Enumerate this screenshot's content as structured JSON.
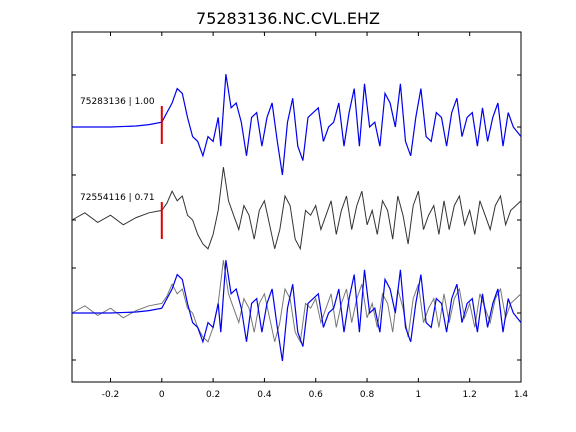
{
  "chart_data": {
    "type": "line",
    "title": "75283136.NC.CVL.EHZ",
    "xlabel": "",
    "ylabel": "",
    "xlim": [
      -0.35,
      1.4
    ],
    "xticks": [
      -0.2,
      0,
      0.2,
      0.4,
      0.6,
      0.8,
      1,
      1.2,
      1.4
    ],
    "xtick_labels": [
      "-0.2",
      "0",
      "0.2",
      "0.4",
      "0.6",
      "0.8",
      "1",
      "1.2",
      "1.4"
    ],
    "grid": false,
    "pick_time": 0,
    "colors": {
      "master": "#0000ee",
      "other": "#333333",
      "pick": "#e00000"
    },
    "traces": [
      {
        "label": "75283136 | 1.00",
        "style": "master"
      },
      {
        "label": "72554116 | 0.71",
        "style": "other"
      }
    ],
    "overlay": {
      "style": "overlay"
    },
    "series": [
      {
        "style": "master",
        "x": [
          -0.35,
          -0.3,
          -0.2,
          -0.1,
          -0.05,
          0,
          0.02,
          0.04,
          0.06,
          0.08,
          0.1,
          0.12,
          0.14,
          0.16,
          0.18,
          0.2,
          0.22,
          0.23,
          0.25,
          0.27,
          0.29,
          0.31,
          0.33,
          0.35,
          0.37,
          0.39,
          0.41,
          0.43,
          0.45,
          0.47,
          0.49,
          0.51,
          0.53,
          0.55,
          0.57,
          0.59,
          0.61,
          0.63,
          0.65,
          0.67,
          0.69,
          0.71,
          0.73,
          0.75,
          0.77,
          0.79,
          0.81,
          0.83,
          0.85,
          0.87,
          0.89,
          0.91,
          0.93,
          0.95,
          0.97,
          0.99,
          1.01,
          1.03,
          1.05,
          1.07,
          1.09,
          1.11,
          1.13,
          1.15,
          1.17,
          1.19,
          1.21,
          1.23,
          1.25,
          1.27,
          1.29,
          1.31,
          1.33,
          1.35,
          1.37,
          1.4
        ],
        "y": [
          0,
          0,
          0,
          0.02,
          0.05,
          0.1,
          0.3,
          0.5,
          0.8,
          0.7,
          0.2,
          -0.2,
          -0.3,
          -0.6,
          -0.2,
          -0.3,
          0.2,
          -0.4,
          1.1,
          0.4,
          0.5,
          0.1,
          -0.6,
          0.2,
          0.3,
          -0.4,
          0.2,
          0.5,
          -0.3,
          -1.0,
          0.1,
          0.6,
          -0.4,
          -0.7,
          0.2,
          0.3,
          0.4,
          -0.3,
          0.0,
          0.1,
          0.5,
          -0.4,
          0.3,
          0.8,
          -0.4,
          0.9,
          0.0,
          0.1,
          -0.4,
          0.7,
          0.5,
          0.0,
          0.9,
          -0.3,
          -0.6,
          0.2,
          0.8,
          -0.2,
          -0.3,
          0.3,
          0.2,
          -0.4,
          0.3,
          0.6,
          -0.2,
          0.2,
          0.3,
          -0.4,
          0.4,
          -0.3,
          0.2,
          0.5,
          -0.4,
          0.3,
          0.0,
          -0.2
        ]
      },
      {
        "style": "other",
        "x": [
          -0.35,
          -0.3,
          -0.25,
          -0.2,
          -0.15,
          -0.1,
          -0.05,
          0,
          0.02,
          0.04,
          0.06,
          0.08,
          0.1,
          0.12,
          0.14,
          0.16,
          0.18,
          0.2,
          0.22,
          0.24,
          0.26,
          0.28,
          0.3,
          0.32,
          0.34,
          0.36,
          0.38,
          0.4,
          0.42,
          0.44,
          0.46,
          0.48,
          0.5,
          0.52,
          0.54,
          0.56,
          0.58,
          0.6,
          0.62,
          0.64,
          0.66,
          0.68,
          0.7,
          0.72,
          0.74,
          0.76,
          0.78,
          0.8,
          0.82,
          0.84,
          0.86,
          0.88,
          0.9,
          0.92,
          0.94,
          0.96,
          0.98,
          1.0,
          1.02,
          1.04,
          1.06,
          1.08,
          1.1,
          1.12,
          1.14,
          1.16,
          1.18,
          1.2,
          1.22,
          1.24,
          1.26,
          1.28,
          1.3,
          1.32,
          1.34,
          1.36,
          1.38,
          1.4
        ],
        "y": [
          0,
          0.15,
          -0.05,
          0.1,
          -0.1,
          0.05,
          0.15,
          0.2,
          0.35,
          0.6,
          0.4,
          0.5,
          0.1,
          0.0,
          -0.3,
          -0.5,
          -0.6,
          -0.3,
          0.2,
          1.1,
          0.4,
          0.1,
          -0.2,
          0.3,
          0.1,
          -0.4,
          0.2,
          0.4,
          -0.1,
          -0.6,
          -0.2,
          0.5,
          0.3,
          -0.4,
          -0.6,
          0.2,
          0.1,
          0.3,
          -0.2,
          0.1,
          0.4,
          -0.3,
          0.2,
          0.5,
          -0.2,
          0.3,
          0.6,
          -0.1,
          0.2,
          -0.3,
          0.4,
          0.2,
          -0.4,
          0.5,
          0.1,
          -0.5,
          0.3,
          0.6,
          -0.2,
          0.1,
          0.3,
          -0.3,
          0.4,
          -0.2,
          0.3,
          0.5,
          -0.1,
          0.2,
          -0.3,
          0.4,
          0.1,
          -0.2,
          0.3,
          0.5,
          -0.1,
          0.2,
          0.3,
          0.4
        ]
      }
    ]
  }
}
